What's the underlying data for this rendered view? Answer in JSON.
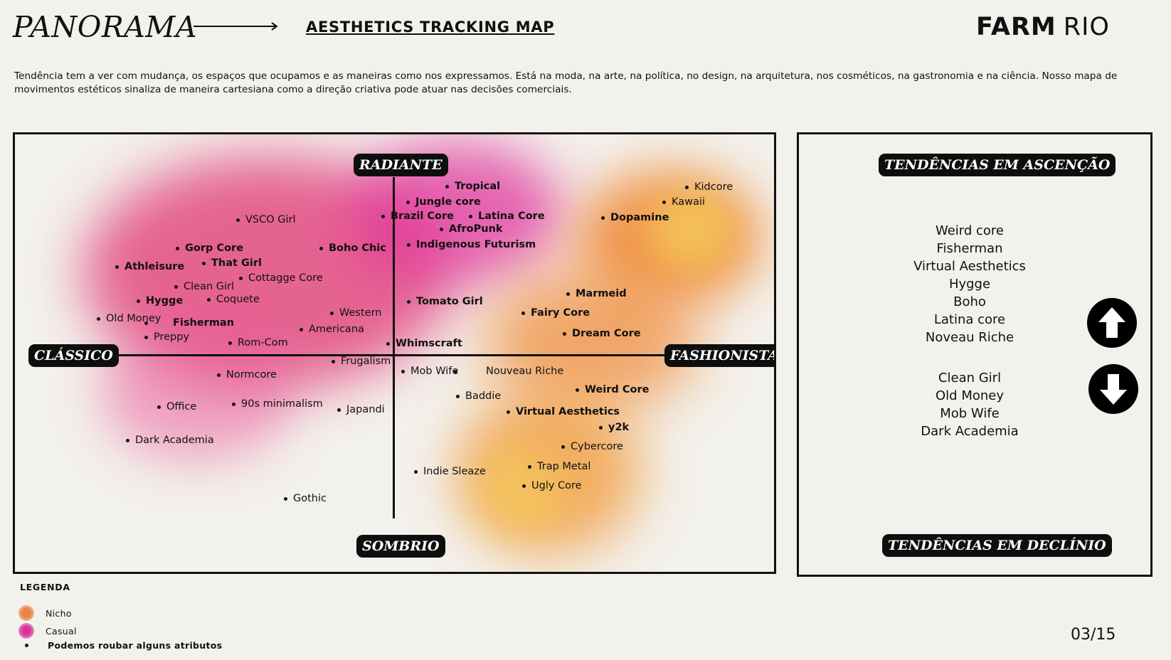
{
  "header": {
    "brand": "PANORAMA",
    "subtitle": "AESTHETICS TRACKING MAP",
    "logo_primary": "FARM",
    "logo_secondary": "RIO"
  },
  "intro": "Tendência tem a ver com mudança, os espaços que ocupamos e as maneiras como nos expressamos. Está na moda, na arte, na política, no design, na arquitetura, nos cosméticos, na gastronomia e na ciência. Nosso mapa de movimentos estéticos sinaliza de maneira cartesiana como a direção criativa pode atuar nas decisões comerciais.",
  "map": {
    "axis_top": "RADIANTE",
    "axis_bottom": "SOMBRIO",
    "axis_left": "CLÁSSICO",
    "axis_right": "FASHIONISTA",
    "colors": {
      "casual": "#e0309a",
      "nicho": "#f0802e",
      "yellow": "#f4c85a"
    },
    "trends": [
      {
        "label": "Tropical",
        "bold": true
      },
      {
        "label": "Jungle core",
        "bold": true
      },
      {
        "label": "Brazil Core",
        "bold": true
      },
      {
        "label": "Latina Core",
        "bold": true
      },
      {
        "label": "AfroPunk",
        "bold": true
      },
      {
        "label": "Indigenous Futurism",
        "bold": true
      },
      {
        "label": "Dopamine",
        "bold": true
      },
      {
        "label": "Kidcore",
        "bold": false
      },
      {
        "label": "Kawaii",
        "bold": false
      },
      {
        "label": "VSCO Girl",
        "bold": false
      },
      {
        "label": "Gorp Core",
        "bold": true
      },
      {
        "label": "Boho  Chic",
        "bold": true
      },
      {
        "label": "Athleisure",
        "bold": true
      },
      {
        "label": "That Girl",
        "bold": true
      },
      {
        "label": "Cottagge Core",
        "bold": false
      },
      {
        "label": "Clean Girl",
        "bold": false
      },
      {
        "label": "Hygge",
        "bold": true
      },
      {
        "label": "Coquete",
        "bold": false
      },
      {
        "label": "Old Money",
        "bold": false
      },
      {
        "label": "Fisherman",
        "bold": true
      },
      {
        "label": "Preppy",
        "bold": false
      },
      {
        "label": "Western",
        "bold": false
      },
      {
        "label": "Americana",
        "bold": false
      },
      {
        "label": "Rom-Com",
        "bold": false
      },
      {
        "label": "Tomato Girl",
        "bold": true
      },
      {
        "label": "Whimscraft",
        "bold": true
      },
      {
        "label": "Marmeid",
        "bold": true
      },
      {
        "label": "Fairy Core",
        "bold": true
      },
      {
        "label": "Dream Core",
        "bold": true
      },
      {
        "label": "Frugalism",
        "bold": false
      },
      {
        "label": "Normcore",
        "bold": false
      },
      {
        "label": "Mob Wife",
        "bold": false
      },
      {
        "label": "Nouveau Riche",
        "bold": false
      },
      {
        "label": "Weird Core",
        "bold": true
      },
      {
        "label": "Baddie",
        "bold": false
      },
      {
        "label": "Office",
        "bold": false
      },
      {
        "label": "90s minimalism",
        "bold": false
      },
      {
        "label": "Japandi",
        "bold": false
      },
      {
        "label": "Virtual Aesthetics",
        "bold": true
      },
      {
        "label": "y2k",
        "bold": true
      },
      {
        "label": "Dark Academia",
        "bold": false
      },
      {
        "label": "Cybercore",
        "bold": false
      },
      {
        "label": "Trap Metal",
        "bold": false
      },
      {
        "label": "Indie Sleaze",
        "bold": false
      },
      {
        "label": "Ugly Core",
        "bold": false
      },
      {
        "label": "Gothic",
        "bold": false
      }
    ]
  },
  "side_panel": {
    "rising_title": "TENDÊNCIAS EM ASCENÇÃO",
    "declining_title": "TENDÊNCIAS EM DECLÍNIO",
    "rising": [
      "Weird core",
      "Fisherman",
      "Virtual Aesthetics",
      "Hygge",
      "Boho",
      "Latina core",
      "Noveau Riche"
    ],
    "declining": [
      "Clean Girl",
      "Old Money",
      "Mob Wife",
      "Dark Academia"
    ],
    "up_icon": "arrow-up-circle",
    "down_icon": "arrow-down-circle"
  },
  "legend": {
    "title": "LEGENDA",
    "items": [
      {
        "label": "Nicho",
        "color": "#e8823f"
      },
      {
        "label": "Casual",
        "color": "#d9329c"
      }
    ],
    "dot_label": "Podemos roubar alguns atributos"
  },
  "page_number": "03/15"
}
